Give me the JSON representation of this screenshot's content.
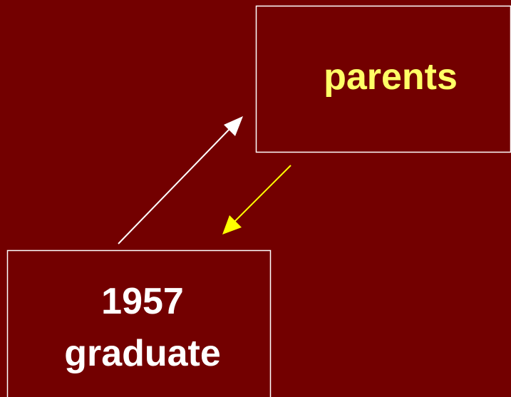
{
  "nodes": [
    {
      "label": "parents"
    },
    {
      "label": "1957"
    },
    {
      "label": "graduate"
    }
  ]
}
